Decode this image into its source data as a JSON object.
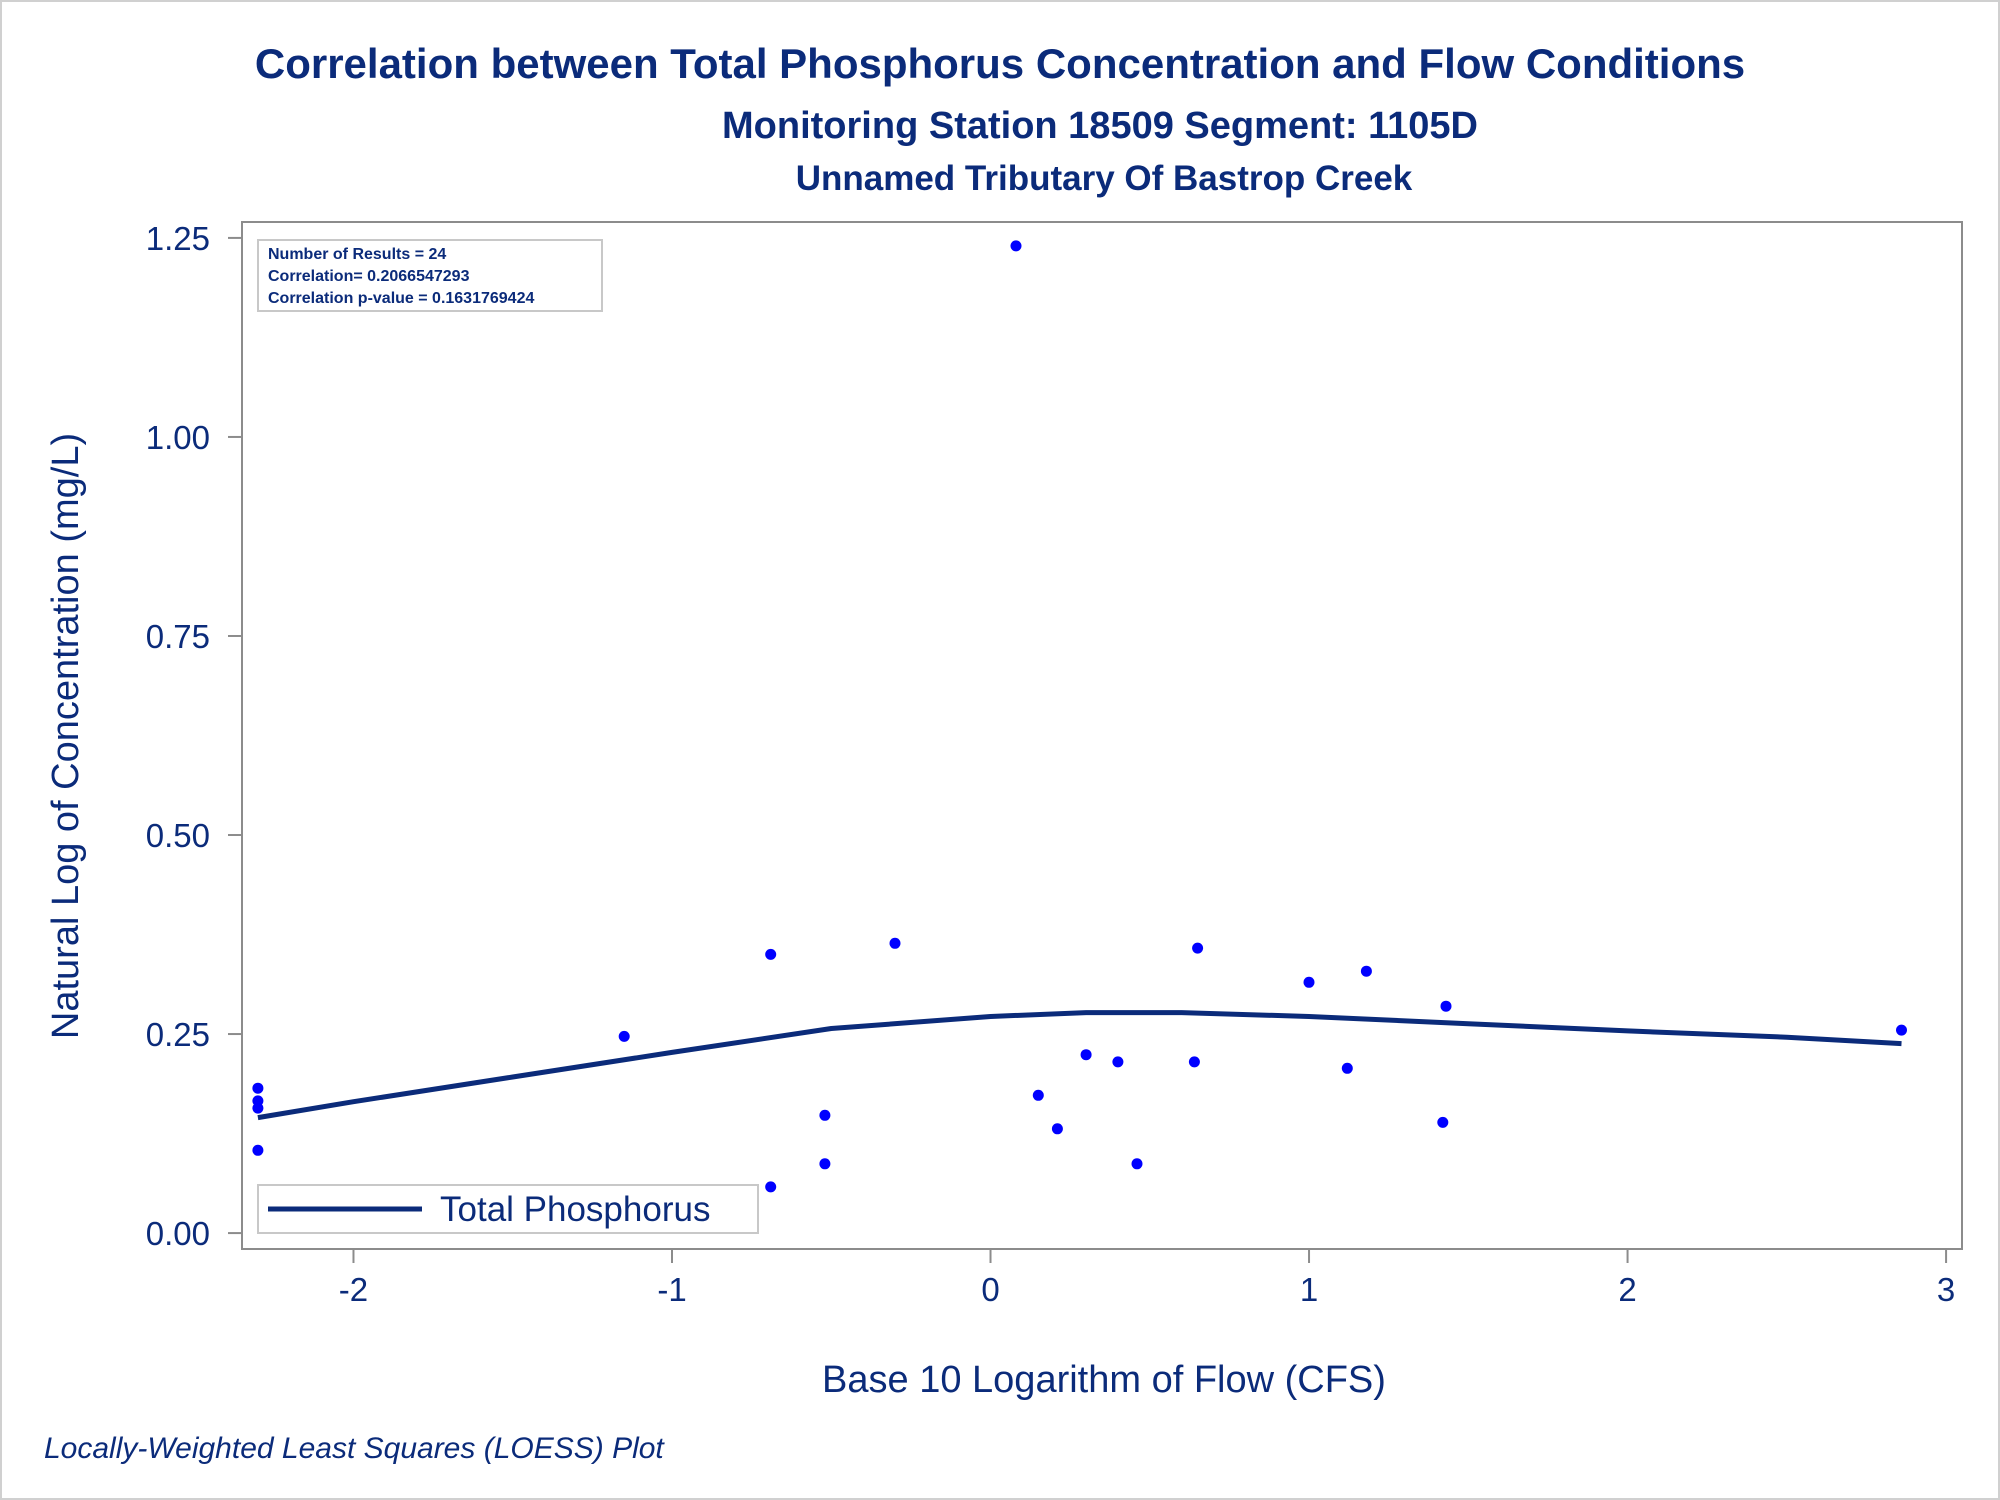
{
  "chart_data": {
    "type": "scatter",
    "title": "Correlation between Total Phosphorus Concentration and Flow Conditions",
    "subtitle": "Monitoring Station 18509 Segment: 1105D",
    "subtitle2": "Unnamed Tributary Of Bastrop Creek",
    "xlabel": "Base 10 Logarithm of Flow (CFS)",
    "ylabel": "Natural Log of Concentration (mg/L)",
    "footnote": "Locally-Weighted Least Squares (LOESS) Plot",
    "xlim": [
      -2.35,
      3.05
    ],
    "ylim": [
      -0.02,
      1.27
    ],
    "x_ticks": [
      -2,
      -1,
      0,
      1,
      2,
      3
    ],
    "x_tick_labels": [
      "-2",
      "-1",
      "0",
      "1",
      "2",
      "3"
    ],
    "y_ticks": [
      0,
      0.25,
      0.5,
      0.75,
      1.0,
      1.25
    ],
    "y_tick_labels": [
      "0.00",
      "0.25",
      "0.50",
      "0.75",
      "1.00",
      "1.25"
    ],
    "grid": false,
    "stats": [
      "Number of Results = 24",
      "Correlation= 0.2066547293",
      "Correlation p-value = 0.1631769424"
    ],
    "legend": {
      "position": "bottom-left",
      "entries": [
        "Total Phosphorus"
      ]
    },
    "points": {
      "color": "#0000ff",
      "x": [
        -2.3,
        -2.3,
        -2.3,
        -2.3,
        -1.15,
        -0.69,
        -0.69,
        -0.52,
        -0.52,
        -0.3,
        0.08,
        0.15,
        0.21,
        0.3,
        0.4,
        0.46,
        0.64,
        0.65,
        1.0,
        1.12,
        1.18,
        1.42,
        1.43,
        2.86
      ],
      "y": [
        0.182,
        0.166,
        0.157,
        0.104,
        0.247,
        0.35,
        0.058,
        0.148,
        0.087,
        0.364,
        1.24,
        0.173,
        0.131,
        0.224,
        0.215,
        0.087,
        0.215,
        0.358,
        0.315,
        0.207,
        0.329,
        0.139,
        0.285,
        0.255
      ]
    },
    "series": [
      {
        "name": "Total Phosphorus",
        "color": "#0b2b7a",
        "x": [
          -2.3,
          -2.0,
          -1.5,
          -1.0,
          -0.5,
          0.0,
          0.3,
          0.6,
          1.0,
          1.5,
          2.0,
          2.5,
          2.86
        ],
        "y": [
          0.145,
          0.165,
          0.196,
          0.227,
          0.257,
          0.272,
          0.277,
          0.277,
          0.272,
          0.263,
          0.254,
          0.246,
          0.238
        ]
      }
    ]
  }
}
